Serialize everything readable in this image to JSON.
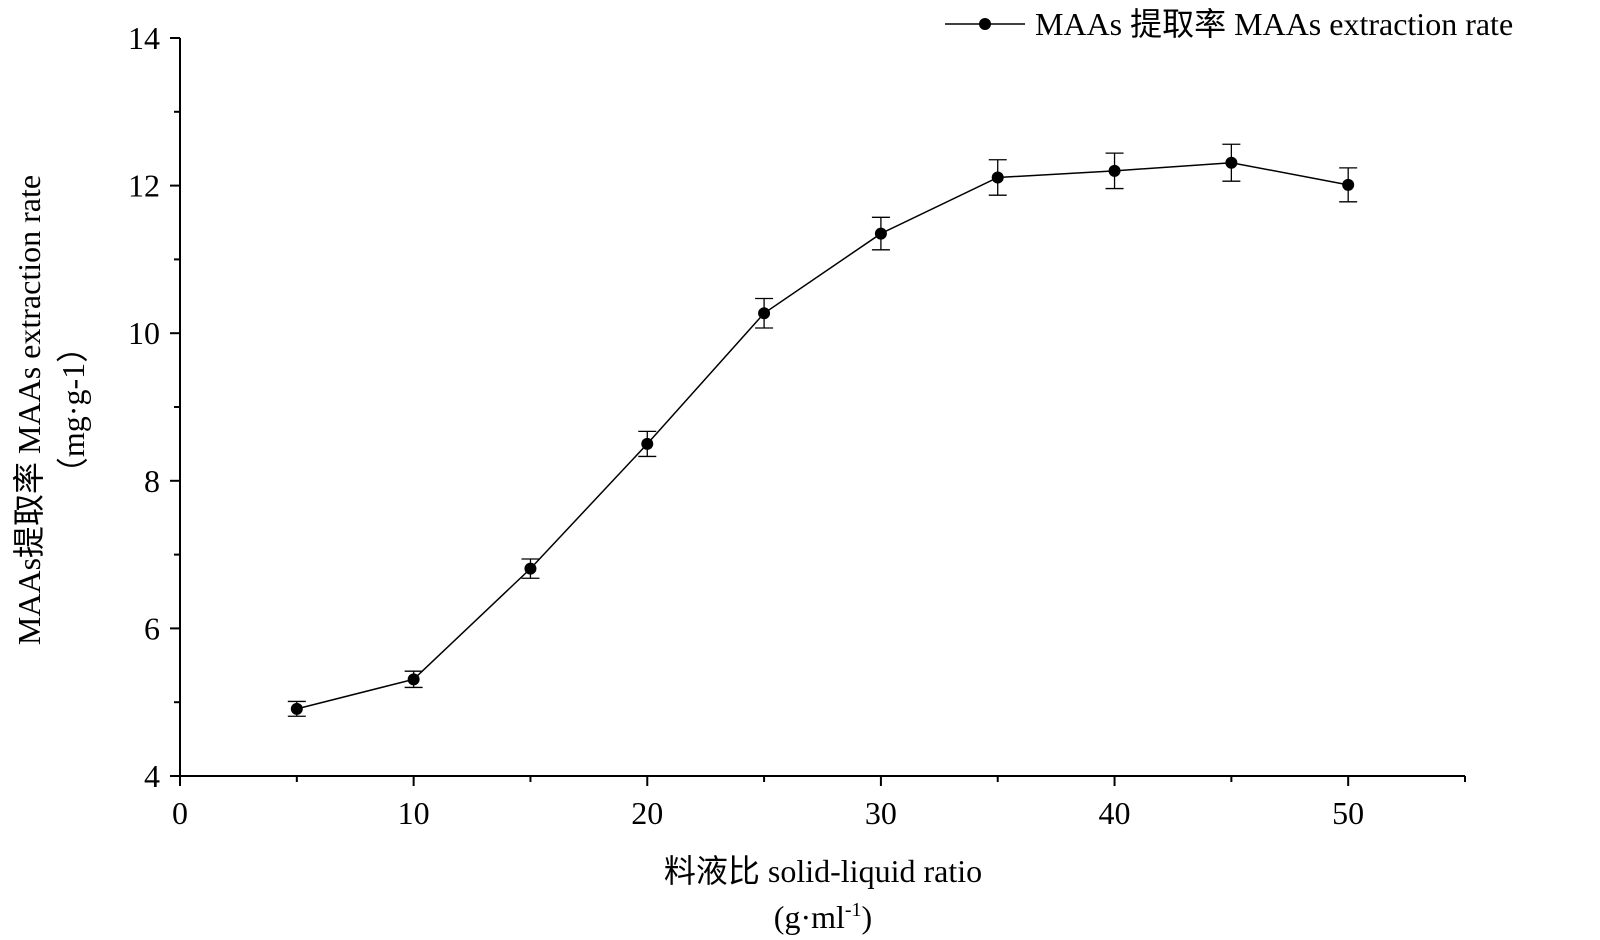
{
  "chart_data": {
    "type": "line",
    "title": "",
    "xlabel_line1": "料液比 solid-liquid ratio",
    "xlabel_line2_base": "(g·ml",
    "xlabel_line2_sup": "-1",
    "xlabel_line2_end": ")",
    "ylabel_line1": "MAAs提取率 MAAs extraction rate",
    "ylabel_line2": "（mg·g-1）",
    "xlim": [
      0,
      55
    ],
    "ylim": [
      4,
      14
    ],
    "xticks": [
      0,
      10,
      20,
      30,
      40,
      50
    ],
    "yticks": [
      4,
      6,
      8,
      10,
      12,
      14
    ],
    "legend_position": "top-right",
    "series": [
      {
        "name": "MAAs 提取率 MAAs extraction rate",
        "color": "#000000",
        "x": [
          5,
          10,
          15,
          20,
          25,
          30,
          35,
          40,
          45,
          50
        ],
        "values": [
          4.91,
          5.31,
          6.81,
          8.5,
          10.27,
          11.35,
          12.11,
          12.2,
          12.31,
          12.01
        ],
        "errors": [
          0.1,
          0.11,
          0.13,
          0.17,
          0.2,
          0.22,
          0.24,
          0.24,
          0.25,
          0.23
        ]
      }
    ]
  }
}
